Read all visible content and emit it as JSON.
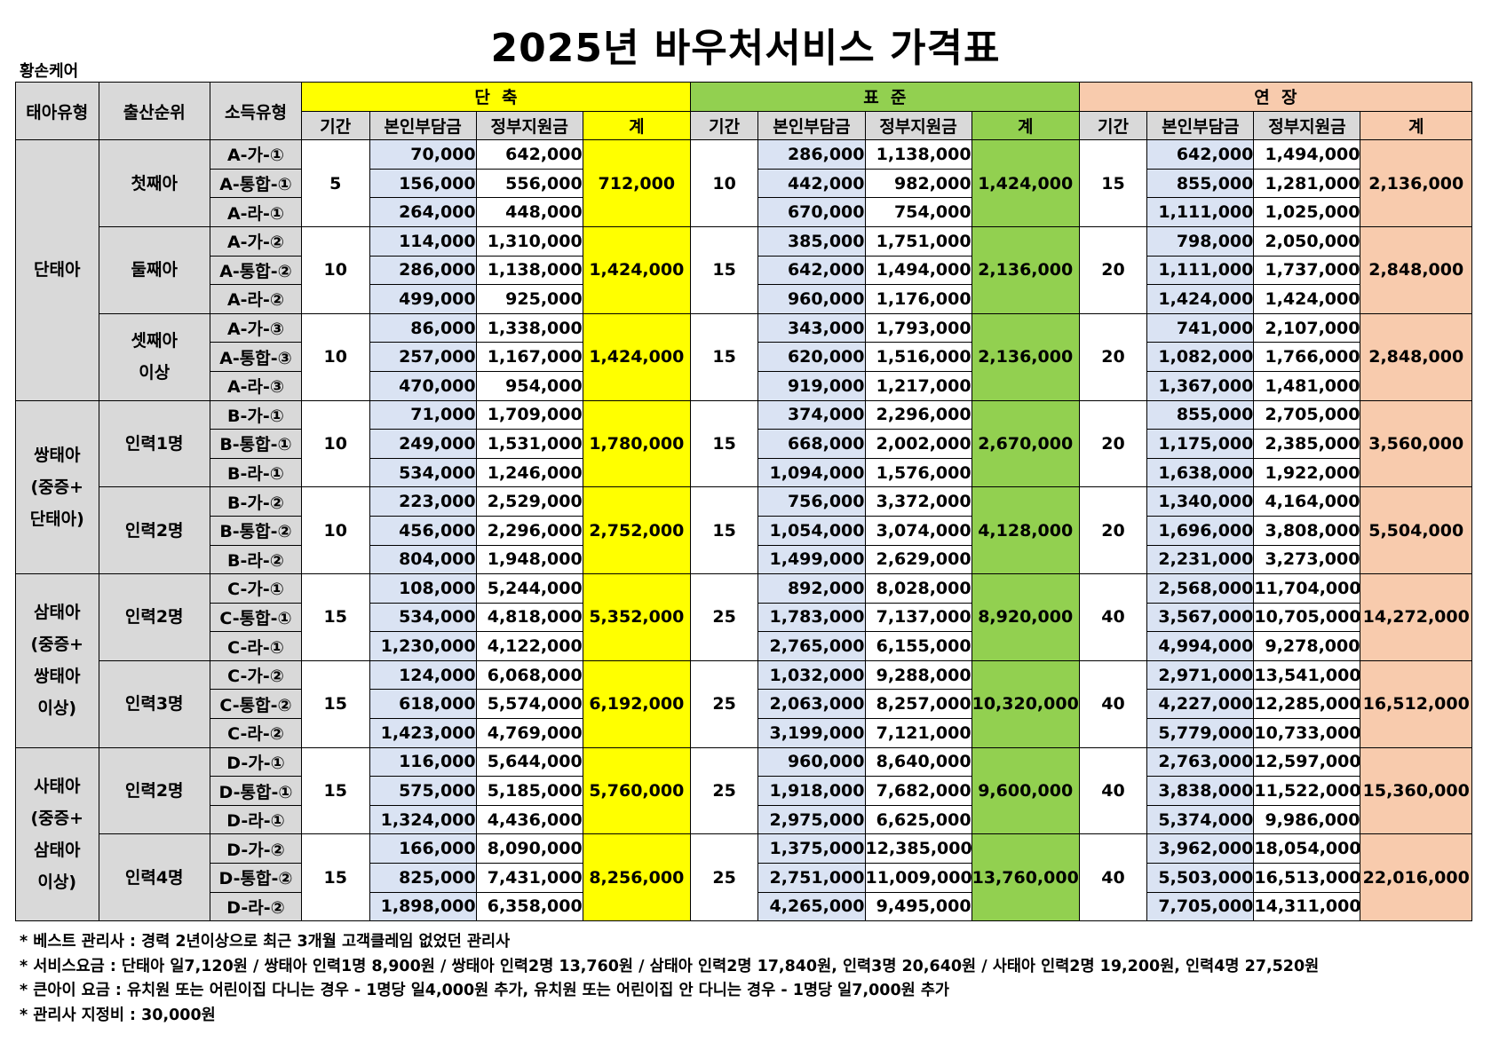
{
  "title": "2025년 바우처서비스 가격표",
  "company": "황손케어",
  "headers": {
    "fetal_type": "태아유형",
    "birth_order": "출산순위",
    "income_type": "소득유형",
    "short": "단  축",
    "standard": "표  준",
    "extended": "연  장",
    "period": "기간",
    "self_pay": "본인부담금",
    "gov_support": "정부지원금",
    "total": "계"
  },
  "colors": {
    "short": "#ffff00",
    "standard": "#92d050",
    "extended": "#f8cbad",
    "header_gray": "#d9d9d9",
    "self_pay_bg": "#dae3f3"
  },
  "groups": [
    {
      "fetal": "단태아",
      "subgroups": [
        {
          "order": "첫째아",
          "short": {
            "period": "5",
            "total": "712,000"
          },
          "standard": {
            "period": "10",
            "total": "1,424,000"
          },
          "extended": {
            "period": "15",
            "total": "2,136,000"
          },
          "rows": [
            {
              "code": "A-가-①",
              "s_self": "70,000",
              "s_gov": "642,000",
              "p_self": "286,000",
              "p_gov": "1,138,000",
              "l_self": "642,000",
              "l_gov": "1,494,000"
            },
            {
              "code": "A-통합-①",
              "s_self": "156,000",
              "s_gov": "556,000",
              "p_self": "442,000",
              "p_gov": "982,000",
              "l_self": "855,000",
              "l_gov": "1,281,000"
            },
            {
              "code": "A-라-①",
              "s_self": "264,000",
              "s_gov": "448,000",
              "p_self": "670,000",
              "p_gov": "754,000",
              "l_self": "1,111,000",
              "l_gov": "1,025,000"
            }
          ]
        },
        {
          "order": "둘째아",
          "short": {
            "period": "10",
            "total": "1,424,000"
          },
          "standard": {
            "period": "15",
            "total": "2,136,000"
          },
          "extended": {
            "period": "20",
            "total": "2,848,000"
          },
          "rows": [
            {
              "code": "A-가-②",
              "s_self": "114,000",
              "s_gov": "1,310,000",
              "p_self": "385,000",
              "p_gov": "1,751,000",
              "l_self": "798,000",
              "l_gov": "2,050,000"
            },
            {
              "code": "A-통합-②",
              "s_self": "286,000",
              "s_gov": "1,138,000",
              "p_self": "642,000",
              "p_gov": "1,494,000",
              "l_self": "1,111,000",
              "l_gov": "1,737,000"
            },
            {
              "code": "A-라-②",
              "s_self": "499,000",
              "s_gov": "925,000",
              "p_self": "960,000",
              "p_gov": "1,176,000",
              "l_self": "1,424,000",
              "l_gov": "1,424,000"
            }
          ]
        },
        {
          "order": "셋째아\n이상",
          "short": {
            "period": "10",
            "total": "1,424,000"
          },
          "standard": {
            "period": "15",
            "total": "2,136,000"
          },
          "extended": {
            "period": "20",
            "total": "2,848,000"
          },
          "rows": [
            {
              "code": "A-가-③",
              "s_self": "86,000",
              "s_gov": "1,338,000",
              "p_self": "343,000",
              "p_gov": "1,793,000",
              "l_self": "741,000",
              "l_gov": "2,107,000"
            },
            {
              "code": "A-통합-③",
              "s_self": "257,000",
              "s_gov": "1,167,000",
              "p_self": "620,000",
              "p_gov": "1,516,000",
              "l_self": "1,082,000",
              "l_gov": "1,766,000"
            },
            {
              "code": "A-라-③",
              "s_self": "470,000",
              "s_gov": "954,000",
              "p_self": "919,000",
              "p_gov": "1,217,000",
              "l_self": "1,367,000",
              "l_gov": "1,481,000"
            }
          ]
        }
      ]
    },
    {
      "fetal": "쌍태아\n(중증+\n단태아)",
      "subgroups": [
        {
          "order": "인력1명",
          "short": {
            "period": "10",
            "total": "1,780,000"
          },
          "standard": {
            "period": "15",
            "total": "2,670,000"
          },
          "extended": {
            "period": "20",
            "total": "3,560,000"
          },
          "rows": [
            {
              "code": "B-가-①",
              "s_self": "71,000",
              "s_gov": "1,709,000",
              "p_self": "374,000",
              "p_gov": "2,296,000",
              "l_self": "855,000",
              "l_gov": "2,705,000"
            },
            {
              "code": "B-통합-①",
              "s_self": "249,000",
              "s_gov": "1,531,000",
              "p_self": "668,000",
              "p_gov": "2,002,000",
              "l_self": "1,175,000",
              "l_gov": "2,385,000"
            },
            {
              "code": "B-라-①",
              "s_self": "534,000",
              "s_gov": "1,246,000",
              "p_self": "1,094,000",
              "p_gov": "1,576,000",
              "l_self": "1,638,000",
              "l_gov": "1,922,000"
            }
          ]
        },
        {
          "order": "인력2명",
          "short": {
            "period": "10",
            "total": "2,752,000"
          },
          "standard": {
            "period": "15",
            "total": "4,128,000"
          },
          "extended": {
            "period": "20",
            "total": "5,504,000"
          },
          "rows": [
            {
              "code": "B-가-②",
              "s_self": "223,000",
              "s_gov": "2,529,000",
              "p_self": "756,000",
              "p_gov": "3,372,000",
              "l_self": "1,340,000",
              "l_gov": "4,164,000"
            },
            {
              "code": "B-통합-②",
              "s_self": "456,000",
              "s_gov": "2,296,000",
              "p_self": "1,054,000",
              "p_gov": "3,074,000",
              "l_self": "1,696,000",
              "l_gov": "3,808,000"
            },
            {
              "code": "B-라-②",
              "s_self": "804,000",
              "s_gov": "1,948,000",
              "p_self": "1,499,000",
              "p_gov": "2,629,000",
              "l_self": "2,231,000",
              "l_gov": "3,273,000"
            }
          ]
        }
      ]
    },
    {
      "fetal": "삼태아\n(중증+\n쌍태아\n이상)",
      "subgroups": [
        {
          "order": "인력2명",
          "short": {
            "period": "15",
            "total": "5,352,000"
          },
          "standard": {
            "period": "25",
            "total": "8,920,000"
          },
          "extended": {
            "period": "40",
            "total": "14,272,000"
          },
          "rows": [
            {
              "code": "C-가-①",
              "s_self": "108,000",
              "s_gov": "5,244,000",
              "p_self": "892,000",
              "p_gov": "8,028,000",
              "l_self": "2,568,000",
              "l_gov": "11,704,000"
            },
            {
              "code": "C-통합-①",
              "s_self": "534,000",
              "s_gov": "4,818,000",
              "p_self": "1,783,000",
              "p_gov": "7,137,000",
              "l_self": "3,567,000",
              "l_gov": "10,705,000"
            },
            {
              "code": "C-라-①",
              "s_self": "1,230,000",
              "s_gov": "4,122,000",
              "p_self": "2,765,000",
              "p_gov": "6,155,000",
              "l_self": "4,994,000",
              "l_gov": "9,278,000"
            }
          ]
        },
        {
          "order": "인력3명",
          "short": {
            "period": "15",
            "total": "6,192,000"
          },
          "standard": {
            "period": "25",
            "total": "10,320,000"
          },
          "extended": {
            "period": "40",
            "total": "16,512,000"
          },
          "rows": [
            {
              "code": "C-가-②",
              "s_self": "124,000",
              "s_gov": "6,068,000",
              "p_self": "1,032,000",
              "p_gov": "9,288,000",
              "l_self": "2,971,000",
              "l_gov": "13,541,000"
            },
            {
              "code": "C-통합-②",
              "s_self": "618,000",
              "s_gov": "5,574,000",
              "p_self": "2,063,000",
              "p_gov": "8,257,000",
              "l_self": "4,227,000",
              "l_gov": "12,285,000"
            },
            {
              "code": "C-라-②",
              "s_self": "1,423,000",
              "s_gov": "4,769,000",
              "p_self": "3,199,000",
              "p_gov": "7,121,000",
              "l_self": "5,779,000",
              "l_gov": "10,733,000"
            }
          ]
        }
      ]
    },
    {
      "fetal": "사태아\n(중증+\n삼태아\n이상)",
      "subgroups": [
        {
          "order": "인력2명",
          "short": {
            "period": "15",
            "total": "5,760,000"
          },
          "standard": {
            "period": "25",
            "total": "9,600,000"
          },
          "extended": {
            "period": "40",
            "total": "15,360,000"
          },
          "rows": [
            {
              "code": "D-가-①",
              "s_self": "116,000",
              "s_gov": "5,644,000",
              "p_self": "960,000",
              "p_gov": "8,640,000",
              "l_self": "2,763,000",
              "l_gov": "12,597,000"
            },
            {
              "code": "D-통합-①",
              "s_self": "575,000",
              "s_gov": "5,185,000",
              "p_self": "1,918,000",
              "p_gov": "7,682,000",
              "l_self": "3,838,000",
              "l_gov": "11,522,000"
            },
            {
              "code": "D-라-①",
              "s_self": "1,324,000",
              "s_gov": "4,436,000",
              "p_self": "2,975,000",
              "p_gov": "6,625,000",
              "l_self": "5,374,000",
              "l_gov": "9,986,000"
            }
          ]
        },
        {
          "order": "인력4명",
          "short": {
            "period": "15",
            "total": "8,256,000"
          },
          "standard": {
            "period": "25",
            "total": "13,760,000"
          },
          "extended": {
            "period": "40",
            "total": "22,016,000"
          },
          "rows": [
            {
              "code": "D-가-②",
              "s_self": "166,000",
              "s_gov": "8,090,000",
              "p_self": "1,375,000",
              "p_gov": "12,385,000",
              "l_self": "3,962,000",
              "l_gov": "18,054,000"
            },
            {
              "code": "D-통합-②",
              "s_self": "825,000",
              "s_gov": "7,431,000",
              "p_self": "2,751,000",
              "p_gov": "11,009,000",
              "l_self": "5,503,000",
              "l_gov": "16,513,000"
            },
            {
              "code": "D-라-②",
              "s_self": "1,898,000",
              "s_gov": "6,358,000",
              "p_self": "4,265,000",
              "p_gov": "9,495,000",
              "l_self": "7,705,000",
              "l_gov": "14,311,000"
            }
          ]
        }
      ]
    }
  ],
  "notes": [
    "* 베스트 관리사 : 경력 2년이상으로 최근 3개월 고객클레임 없었던 관리사",
    "* 서비스요금 : 단태아 일7,120원 / 쌍태아 인력1명 8,900원 / 쌍태아 인력2명 13,760원 / 삼태아 인력2명 17,840원, 인력3명 20,640원 / 사태아 인력2명 19,200원, 인력4명 27,520원",
    "* 큰아이 요금  : 유치원 또는 어린이집 다니는 경우 - 1명당 일4,000원 추가,  유치원 또는 어린이집 안 다니는 경우 - 1명당 일7,000원 추가",
    "* 관리사 지정비 : 30,000원"
  ]
}
